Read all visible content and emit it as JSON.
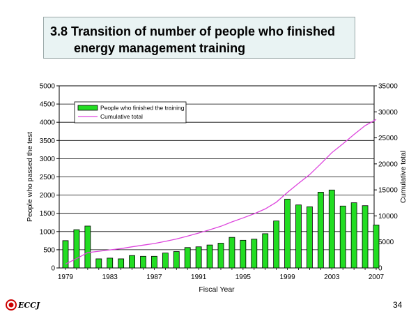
{
  "header": {
    "title_line1": "3.8  Transition of number of people who finished",
    "title_line2": "energy management training"
  },
  "footer": {
    "logo_text": "ECCJ",
    "page_number": "34"
  },
  "colors": {
    "bar_fill": "#22dd22",
    "bar_stroke": "#000000",
    "line": "#dd44dd",
    "title_bg": "#e9f3f3",
    "logo_red": "#cc0000"
  },
  "chart_data": {
    "type": "bar",
    "xlabel": "Fiscal Year",
    "ylabel_left": "People who passed the test",
    "ylabel_right": "Cumulative total",
    "ylim_left": [
      0,
      5000
    ],
    "ylim_right": [
      0,
      35000
    ],
    "yticks_left": [
      0,
      500,
      1000,
      1500,
      2000,
      2500,
      3000,
      3500,
      4000,
      4500,
      5000
    ],
    "yticks_right": [
      0,
      5000,
      10000,
      15000,
      20000,
      25000,
      30000,
      35000
    ],
    "x_tick_labels": [
      "1979",
      "1983",
      "1987",
      "1991",
      "1995",
      "1999",
      "2003",
      "2007"
    ],
    "grid": "horizontal",
    "legend_position": "top-left",
    "categories": [
      1979,
      1980,
      1981,
      1982,
      1983,
      1984,
      1985,
      1986,
      1987,
      1988,
      1989,
      1990,
      1991,
      1992,
      1993,
      1994,
      1995,
      1996,
      1997,
      1998,
      1999,
      2000,
      2001,
      2002,
      2003,
      2004,
      2005,
      2006,
      2007
    ],
    "series": [
      {
        "name": "People who finished the training",
        "type": "bar",
        "axis": "left",
        "values": [
          750,
          1050,
          1150,
          250,
          270,
          250,
          340,
          320,
          320,
          410,
          450,
          560,
          580,
          630,
          680,
          840,
          760,
          790,
          940,
          1290,
          1890,
          1730,
          1680,
          2080,
          2140,
          1700,
          1790,
          1710,
          1180
        ]
      },
      {
        "name": "Cumulative total",
        "type": "line",
        "axis": "right",
        "values": [
          750,
          1800,
          2950,
          3200,
          3470,
          3720,
          4060,
          4380,
          4700,
          5110,
          5560,
          6120,
          6700,
          7330,
          8010,
          8850,
          9610,
          10400,
          11340,
          12630,
          14520,
          16250,
          17930,
          20010,
          22150,
          23850,
          25640,
          27350,
          28530
        ]
      }
    ]
  }
}
